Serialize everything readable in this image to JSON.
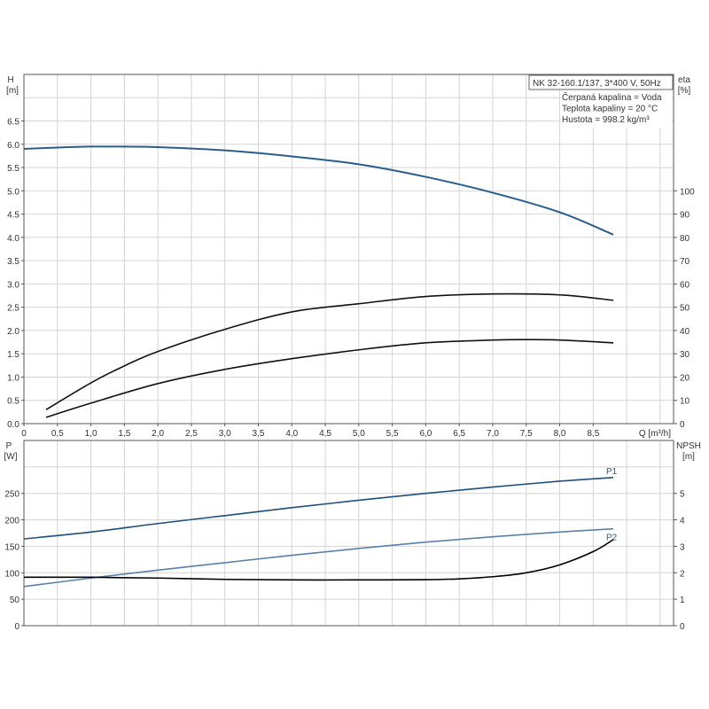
{
  "chart_data": [
    {
      "type": "line",
      "x_label": "Q [m³/h]",
      "y_left_label": [
        "H",
        "[m]"
      ],
      "y_right_label": [
        "eta",
        "[%]"
      ],
      "x_ticks": [
        "0",
        "0,5",
        "1,0",
        "1,5",
        "2,0",
        "2,5",
        "3,0",
        "3,5",
        "4,0",
        "4,5",
        "5,0",
        "5,5",
        "6,0",
        "6,5",
        "7,0",
        "7,5",
        "8,0",
        "8,5"
      ],
      "y_left_ticks": [
        "0.0",
        "0.5",
        "1.0",
        "1.5",
        "2.0",
        "2.5",
        "3.0",
        "3.5",
        "4.0",
        "4.5",
        "5.0",
        "5.5",
        "6.0",
        "6.5"
      ],
      "y_right_ticks": [
        "0",
        "10",
        "20",
        "30",
        "40",
        "50",
        "60",
        "70",
        "80",
        "90",
        "100"
      ],
      "xlim": [
        0,
        9.7
      ],
      "ylim_left": [
        0,
        7.5
      ],
      "ylim_right": [
        0,
        150
      ],
      "grid": true,
      "info_box": {
        "title": "NK 32-160.1/137, 3*400 V, 50Hz",
        "lines": [
          "Čerpaná kapalina = Voda",
          "Teplota kapaliny = 20 °C",
          "Hustota = 998.2 kg/m³"
        ]
      },
      "series": [
        {
          "axis": "left",
          "color": "#2b5d8c",
          "x": [
            0,
            0.5,
            1.0,
            1.5,
            2.0,
            3.0,
            4.0,
            5.0,
            6.0,
            7.0,
            8.0,
            8.8
          ],
          "y": [
            5.9,
            5.93,
            5.95,
            5.95,
            5.94,
            5.87,
            5.74,
            5.57,
            5.3,
            4.96,
            4.54,
            4.06
          ]
        },
        {
          "axis": "right",
          "color": "#111111",
          "x": [
            0.33,
            1.0,
            1.5,
            2.0,
            3.0,
            4.0,
            5.0,
            6.0,
            7.0,
            8.0,
            8.8
          ],
          "y": [
            6,
            17.5,
            24.8,
            31,
            40.5,
            48,
            51.5,
            54.6,
            55.7,
            55.3,
            53
          ]
        },
        {
          "axis": "right",
          "color": "#111111",
          "x": [
            0.33,
            1.0,
            2.0,
            3.0,
            4.0,
            5.0,
            6.0,
            7.0,
            7.5,
            8.0,
            8.8
          ],
          "y": [
            2.7,
            8.8,
            17.2,
            23.3,
            27.9,
            31.7,
            34.7,
            35.9,
            36.1,
            35.9,
            34.7
          ]
        }
      ]
    },
    {
      "type": "line",
      "y_left_label": [
        "P",
        "[W]"
      ],
      "y_right_label": [
        "NPSH",
        "[m]"
      ],
      "y_left_ticks": [
        "0",
        "50",
        "100",
        "150",
        "200",
        "250"
      ],
      "y_right_ticks": [
        "0",
        "1",
        "2",
        "3",
        "4",
        "5"
      ],
      "xlim": [
        0,
        9.7
      ],
      "ylim_left": [
        0,
        350
      ],
      "ylim_right": [
        0,
        7
      ],
      "grid": true,
      "series": [
        {
          "name": "P1",
          "axis": "left",
          "color": "#1f4e79",
          "x": [
            0,
            1,
            2,
            3,
            4,
            5,
            6,
            7,
            8,
            8.8
          ],
          "y": [
            164,
            177,
            193,
            208,
            223,
            237,
            250,
            262,
            273,
            280
          ]
        },
        {
          "name": "P2",
          "axis": "left",
          "color": "#5b80a8",
          "x": [
            0,
            1,
            2,
            3,
            4,
            5,
            6,
            7,
            8,
            8.8
          ],
          "y": [
            74,
            90,
            105,
            119,
            133,
            146,
            158,
            168,
            177,
            183
          ]
        },
        {
          "axis": "right",
          "color": "#000000",
          "x": [
            0,
            1.0,
            2.0,
            3.0,
            4.0,
            5.0,
            6.0,
            6.5,
            7.0,
            7.5,
            8.0,
            8.5,
            8.8
          ],
          "y": [
            1.83,
            1.83,
            1.8,
            1.75,
            1.73,
            1.73,
            1.74,
            1.77,
            1.85,
            2.0,
            2.3,
            2.8,
            3.25
          ]
        }
      ]
    }
  ]
}
